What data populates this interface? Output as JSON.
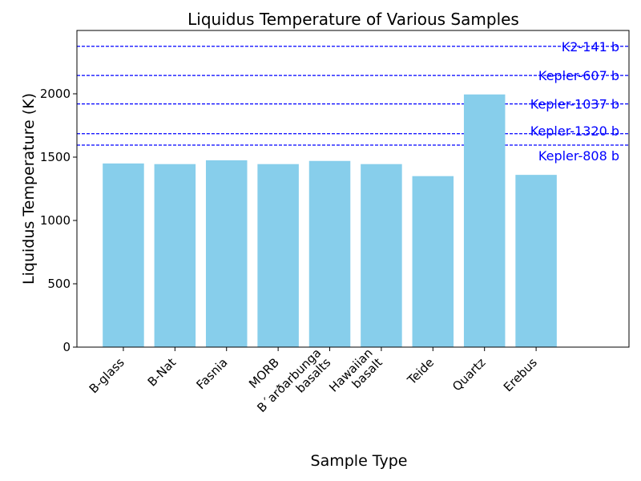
{
  "chart_data": {
    "type": "bar",
    "title": "Liquidus Temperature of Various Samples",
    "xlabel": "Sample Type",
    "ylabel": "Liquidus Temperature (K)",
    "categories": [
      [
        "B-glass"
      ],
      [
        "B-Nat"
      ],
      [
        "Fasnia"
      ],
      [
        "MORB"
      ],
      [
        "B´arðarbunga",
        "basalts"
      ],
      [
        "Hawaiian",
        "basalt"
      ],
      [
        "Teide"
      ],
      [
        "Quartz"
      ],
      [
        "Erebus"
      ]
    ],
    "values": [
      1450,
      1445,
      1475,
      1445,
      1470,
      1445,
      1350,
      1995,
      1360
    ],
    "bar_color": "#87ceeb",
    "ylim": [
      0,
      2500
    ],
    "yticks": [
      0,
      500,
      1000,
      1500,
      2000
    ],
    "xlim": [
      -0.9,
      9.8
    ],
    "reference_lines": [
      {
        "label": "K2-141 b",
        "value": 2375
      },
      {
        "label": "Kepler-607 b",
        "value": 2145
      },
      {
        "label": "Kepler-1037 b",
        "value": 1920
      },
      {
        "label": "Kepler-1320 b",
        "value": 1685
      },
      {
        "label": "Kepler-808 b",
        "value": 1595
      }
    ],
    "reference_color": "#0000ff",
    "grid": false
  }
}
